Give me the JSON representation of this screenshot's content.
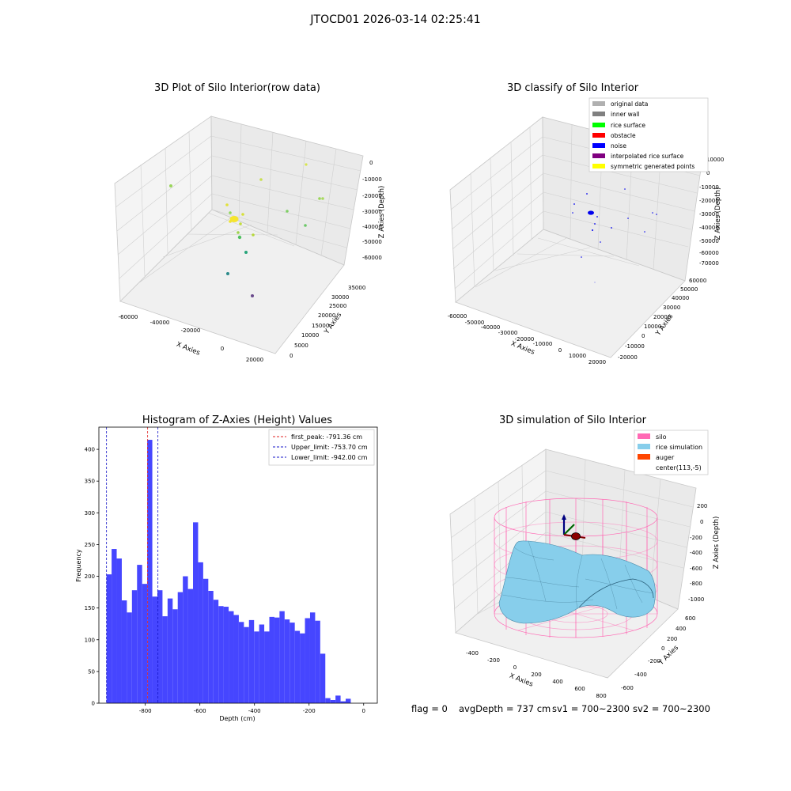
{
  "figure_title": "JTOCD01 2026-03-14 02:25:41",
  "status": {
    "flag": "flag = 0",
    "avg_depth": "avgDepth = 737 cm",
    "sv1": "sv1 = 700~2300",
    "sv2": "sv2 = 700~2300"
  },
  "colors": {
    "raw_points": "#f6e52e",
    "noise": "#0000ee",
    "hist_bar": "#4646ff",
    "first_peak_line": "#e02020",
    "limit_line": "#1515c8",
    "silo": "#ff69b4",
    "rice": "#87ceeb",
    "auger": "#ff4500"
  },
  "chart_data": [
    {
      "type": "scatter",
      "title": "3D Plot of Silo Interior(row data)",
      "xlabel": "X Axies",
      "ylabel": "Y Axies",
      "zlabel": "Z Axies (Depth)",
      "xticks": [
        "-60000",
        "-40000",
        "-20000",
        "0",
        "20000"
      ],
      "yticks": [
        "0",
        "5000",
        "10000",
        "15000",
        "20000",
        "25000",
        "30000",
        "35000"
      ],
      "zticks": [
        "0",
        "-10000",
        "-20000",
        "-30000",
        "-40000",
        "-50000",
        "-60000"
      ],
      "grid": true
    },
    {
      "type": "scatter",
      "title": "3D classify of Silo Interior",
      "xlabel": "X Axies",
      "ylabel": "Y Axies",
      "zlabel": "Z Axies (Depth)",
      "xticks": [
        "-60000",
        "-50000",
        "-40000",
        "-30000",
        "-20000",
        "-10000",
        "0",
        "10000",
        "20000"
      ],
      "yticks": [
        "-20000",
        "-10000",
        "0",
        "10000",
        "20000",
        "30000",
        "40000",
        "50000",
        "60000"
      ],
      "zticks": [
        "10000",
        "0",
        "-10000",
        "-20000",
        "-30000",
        "-40000",
        "-50000",
        "-60000",
        "-70000"
      ],
      "legend_position": "top-right",
      "legend": [
        {
          "label": "original data",
          "color": "#b0b0b0"
        },
        {
          "label": "inner wall",
          "color": "#808080"
        },
        {
          "label": "rice surface",
          "color": "#00ff00"
        },
        {
          "label": "obstacle",
          "color": "#ff0000"
        },
        {
          "label": "noise",
          "color": "#0000ff"
        },
        {
          "label": "interpolated rice surface",
          "color": "#800080"
        },
        {
          "label": "symmetric generated points",
          "color": "#ffff00"
        }
      ],
      "grid": true
    },
    {
      "type": "bar",
      "title": "Histogram of Z-Axies (Height) Values",
      "xlabel": "Depth (cm)",
      "ylabel": "Frequency",
      "xlim": [
        -970,
        50
      ],
      "ylim": [
        0,
        435
      ],
      "xticks": [
        "-800",
        "-600",
        "-400",
        "-200",
        "0"
      ],
      "yticks": [
        "0",
        "50",
        "100",
        "150",
        "200",
        "250",
        "300",
        "350",
        "400"
      ],
      "bin_start": -942,
      "bin_width": 18.64,
      "values": [
        203,
        243,
        228,
        162,
        143,
        178,
        218,
        188,
        415,
        168,
        178,
        137,
        165,
        148,
        175,
        200,
        180,
        285,
        222,
        196,
        177,
        163,
        153,
        152,
        145,
        139,
        128,
        120,
        131,
        113,
        124,
        113,
        136,
        135,
        145,
        132,
        127,
        114,
        110,
        134,
        143,
        130,
        78,
        8,
        5,
        12,
        3,
        7
      ],
      "vlines": [
        {
          "label": "first_peak: -791.36 cm",
          "x": -791.36,
          "color": "#e02020"
        },
        {
          "label": "Upper_limit: -753.70 cm",
          "x": -753.7,
          "color": "#1515c8"
        },
        {
          "label": "Lower_limit: -942.00 cm",
          "x": -942.0,
          "color": "#1515c8"
        }
      ],
      "legend_position": "top-right",
      "grid": false
    },
    {
      "type": "3d-surface",
      "title": "3D simulation of Silo Interior",
      "xlabel": "X Axies",
      "ylabel": "Y Axies",
      "zlabel": "Z Axies (Depth)",
      "xticks": [
        "-400",
        "-200",
        "0",
        "200",
        "400",
        "600",
        "800"
      ],
      "yticks": [
        "-600",
        "-400",
        "-200",
        "0",
        "200",
        "400",
        "600"
      ],
      "zticks": [
        "200",
        "0",
        "-200",
        "-400",
        "-600",
        "-800",
        "-1000"
      ],
      "legend_position": "top-right",
      "legend": [
        {
          "label": "silo",
          "color": "#ff69b4"
        },
        {
          "label": "rice simulation",
          "color": "#87ceeb"
        },
        {
          "label": "auger",
          "color": "#ff4500"
        },
        {
          "label": "center(113,-5)",
          "color": ""
        }
      ],
      "grid": true
    }
  ]
}
